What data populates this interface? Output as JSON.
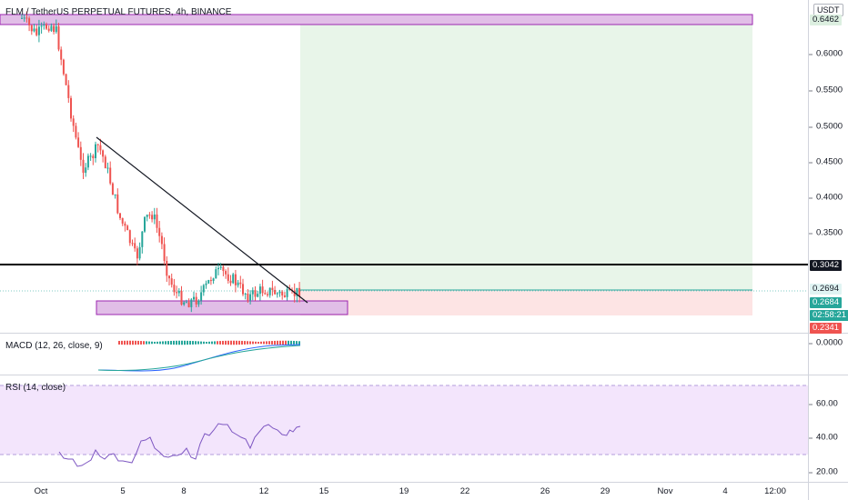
{
  "header": {
    "symbol_title": "FLM / TetherUS PERPETUAL FUTURES, 4h, BINANCE",
    "currency_button": "USDT"
  },
  "price_axis": {
    "ticks": [
      "0.6000",
      "0.5500",
      "0.5000",
      "0.4500",
      "0.4000",
      "0.3500"
    ],
    "tags": {
      "target": "0.6462",
      "level": "0.3042",
      "last_price": "0.2694",
      "entry": "0.2684",
      "countdown": "02:58:21",
      "stop": "0.2341"
    },
    "colors": {
      "target_bg": "#dcefe0",
      "level_bg": "#131722",
      "last_bg": "#e0f4f3",
      "entry_bg": "#26a69a",
      "countdown_bg": "#26a69a",
      "stop_bg": "#ef5350"
    }
  },
  "macd_pane": {
    "label": "MACD (12, 26, close, 9)",
    "axis_value": "0.0000"
  },
  "rsi_pane": {
    "label": "RSI (14, close)",
    "ticks": [
      "60.00",
      "40.00",
      "20.00"
    ]
  },
  "time_axis": {
    "ticks": [
      "Oct",
      "5",
      "8",
      "12",
      "15",
      "19",
      "22",
      "26",
      "29",
      "Nov",
      "4",
      "12:00"
    ]
  },
  "colors": {
    "up_candle": "#26a69a",
    "down_candle": "#ef5350",
    "zone_fill": "#e1bee7",
    "zone_border": "#9c27b0",
    "profit_zone": "#e8f5e9",
    "loss_zone": "#fde4e4",
    "rsi_band": "#f3e5fc",
    "rsi_line": "#7e57c2"
  }
}
